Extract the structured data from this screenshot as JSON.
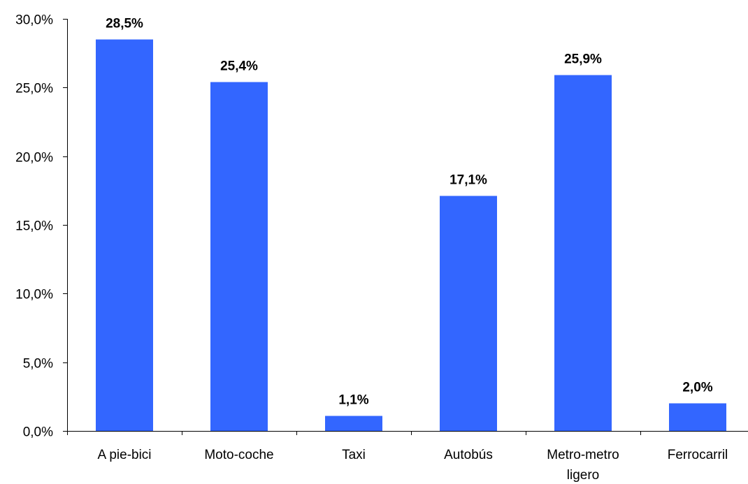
{
  "chart_data": {
    "type": "bar",
    "title": "",
    "xlabel": "",
    "ylabel": "",
    "categories": [
      "A pie-bici",
      "Moto-coche",
      "Taxi",
      "Autobús",
      "Metro-metro ligero",
      "Ferrocarril"
    ],
    "category_lines": [
      [
        "A pie-bici"
      ],
      [
        "Moto-coche"
      ],
      [
        "Taxi"
      ],
      [
        "Autobús"
      ],
      [
        "Metro-metro",
        "ligero"
      ],
      [
        "Ferrocarril"
      ]
    ],
    "values": [
      28.5,
      25.4,
      1.1,
      17.1,
      25.9,
      2.0
    ],
    "data_labels": [
      "28,5%",
      "25,4%",
      "1,1%",
      "17,1%",
      "25,9%",
      "2,0%"
    ],
    "ylim": [
      0,
      30
    ],
    "y_ticks": [
      0,
      5,
      10,
      15,
      20,
      25,
      30
    ],
    "y_tick_labels": [
      "0,0%",
      "5,0%",
      "10,0%",
      "15,0%",
      "20,0%",
      "25,0%",
      "30,0%"
    ],
    "grid": false,
    "legend": "none",
    "bar_color": "#3366FF"
  }
}
